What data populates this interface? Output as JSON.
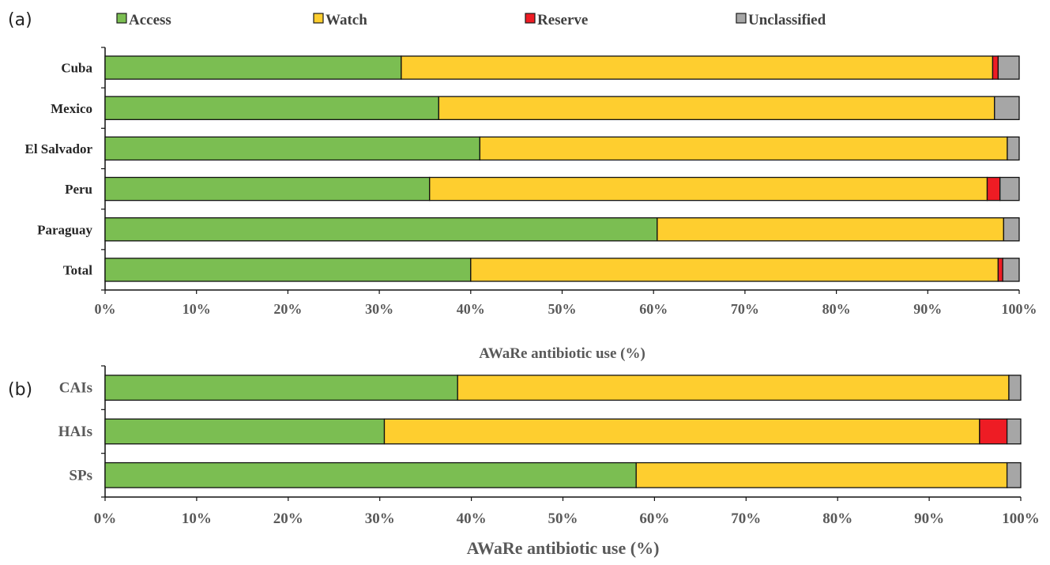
{
  "legend": [
    {
      "name": "Access",
      "color": "#7BBE52"
    },
    {
      "name": "Watch",
      "color": "#FECE2F"
    },
    {
      "name": "Reserve",
      "color": "#EE1C24"
    },
    {
      "name": "Unclassified",
      "color": "#A6A6A6"
    }
  ],
  "chart_data": [
    {
      "type": "bar",
      "orientation": "horizontal",
      "stacked": true,
      "panel": "(a)",
      "categories": [
        "Cuba",
        "Mexico",
        "El Salvador",
        "Peru",
        "Paraguay",
        "Total"
      ],
      "series": [
        {
          "name": "Access",
          "color": "#7BBE52",
          "values": [
            32.4,
            36.5,
            41.0,
            35.5,
            60.4,
            40.0
          ]
        },
        {
          "name": "Watch",
          "color": "#FECE2F",
          "values": [
            64.7,
            60.8,
            57.7,
            61.0,
            37.9,
            57.7
          ]
        },
        {
          "name": "Reserve",
          "color": "#EE1C24",
          "values": [
            0.6,
            0.0,
            0.0,
            1.4,
            0.0,
            0.5
          ]
        },
        {
          "name": "Unclassified",
          "color": "#A6A6A6",
          "values": [
            2.3,
            2.7,
            1.3,
            2.1,
            1.7,
            1.8
          ]
        }
      ],
      "xticks": [
        "0%",
        "10%",
        "20%",
        "30%",
        "40%",
        "50%",
        "60%",
        "70%",
        "80%",
        "90%",
        "100%"
      ],
      "xlim": [
        0,
        100
      ],
      "xlabel": "AWaRe antibiotic use (%)",
      "legend_position": "top"
    },
    {
      "type": "bar",
      "orientation": "horizontal",
      "stacked": true,
      "panel": "(b)",
      "categories": [
        "CAIs",
        "HAIs",
        "SPs"
      ],
      "series": [
        {
          "name": "Access",
          "color": "#7BBE52",
          "values": [
            38.5,
            30.5,
            58.0
          ]
        },
        {
          "name": "Watch",
          "color": "#FECE2F",
          "values": [
            60.2,
            65.0,
            40.5
          ]
        },
        {
          "name": "Reserve",
          "color": "#EE1C24",
          "values": [
            0.0,
            3.0,
            0.0
          ]
        },
        {
          "name": "Unclassified",
          "color": "#A6A6A6",
          "values": [
            1.3,
            1.5,
            1.5
          ]
        }
      ],
      "xticks": [
        "0%",
        "10%",
        "20%",
        "30%",
        "40%",
        "50%",
        "60%",
        "70%",
        "80%",
        "90%",
        "100%"
      ],
      "xlim": [
        0,
        100
      ],
      "xlabel": "AWaRe antibiotic use (%)"
    }
  ]
}
